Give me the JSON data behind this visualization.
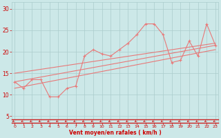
{
  "bg_color": "#cce8e8",
  "grid_color": "#aacccc",
  "line_color": "#e87878",
  "arrow_color": "#cc2222",
  "xlabel": "Vent moyen/en rafales ( km/h )",
  "xlabel_color": "#cc0000",
  "tick_color": "#cc0000",
  "yticks": [
    5,
    10,
    15,
    20,
    25,
    30
  ],
  "xticks": [
    0,
    1,
    2,
    3,
    4,
    5,
    6,
    7,
    8,
    9,
    10,
    11,
    12,
    13,
    14,
    15,
    16,
    17,
    18,
    19,
    20,
    21,
    22,
    23
  ],
  "xlim": [
    -0.3,
    23.3
  ],
  "ylim": [
    3.5,
    31.5
  ],
  "y_main": [
    13.0,
    11.5,
    13.5,
    13.5,
    9.5,
    9.5,
    11.5,
    12.0,
    19.0,
    20.5,
    19.5,
    19.0,
    20.5,
    22.0,
    24.0,
    26.5,
    26.5,
    24.0,
    17.5,
    18.0,
    22.5,
    19.0,
    26.5,
    21.5
  ],
  "reg_lines": [
    [
      0,
      13.0,
      23,
      21.5
    ],
    [
      0,
      11.5,
      23,
      20.5
    ],
    [
      0,
      15.0,
      23,
      22.0
    ]
  ]
}
